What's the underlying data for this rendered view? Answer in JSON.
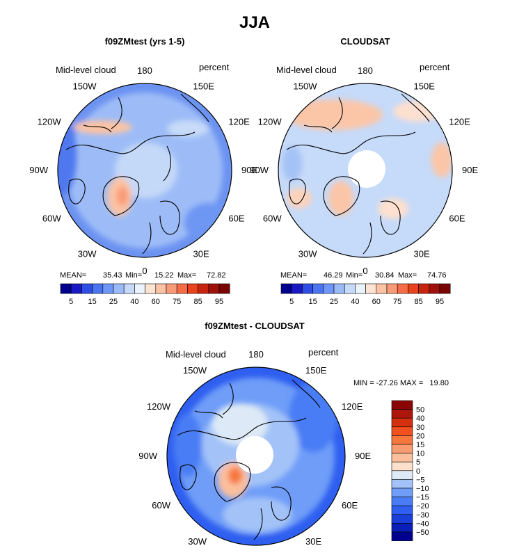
{
  "chart_data": {
    "type": "polar-contour-map-panels",
    "title": "JJA",
    "variable": "Mid-level cloud",
    "projection": "north-polar-stereographic",
    "longitude_labels": [
      "180",
      "150E",
      "120E",
      "90E",
      "60E",
      "30E",
      "0",
      "30W",
      "60W",
      "90W",
      "120W",
      "150W"
    ],
    "panels": [
      {
        "id": "model",
        "title": "f09ZMtest (yrs 1-5)",
        "field_label": "Mid-level cloud",
        "units": "percent",
        "stats": {
          "mean_label": "MEAN=",
          "mean": "35.43",
          "min_label": "Min=",
          "min": "15.22",
          "max_label": "Max=",
          "max": "72.82"
        },
        "polar_gap": false,
        "colorbar_ticks": [
          "5",
          "15",
          "25",
          "40",
          "60",
          "75",
          "85",
          "95"
        ]
      },
      {
        "id": "obs",
        "title": "CLOUDSAT",
        "field_label": "Mid-level cloud",
        "units": "percent",
        "stats": {
          "mean_label": "MEAN=",
          "mean": "46.29",
          "min_label": "Min=",
          "min": "30.84",
          "max_label": "Max=",
          "max": "74.76"
        },
        "polar_gap": true,
        "colorbar_ticks": [
          "5",
          "15",
          "25",
          "40",
          "60",
          "75",
          "85",
          "95"
        ]
      },
      {
        "id": "diff",
        "title": "f09ZMtest - CLOUDSAT",
        "field_label": "Mid-level cloud",
        "units": "percent",
        "stats_text": "MIN = -27.26 MAX =   19.80",
        "polar_gap": true,
        "colorbar_ticks": [
          "50",
          "40",
          "30",
          "20",
          "15",
          "10",
          "5",
          "0",
          "−5",
          "−10",
          "−15",
          "−20",
          "−30",
          "−40",
          "−50"
        ]
      }
    ],
    "colors": {
      "abs_scale": [
        "#00008f",
        "#1a1ac4",
        "#2f4fe4",
        "#4a74f0",
        "#6f97f7",
        "#9bbaf8",
        "#c6d9f9",
        "#eaf2fb",
        "#fde3d2",
        "#fbc2a4",
        "#f99b77",
        "#f56c46",
        "#e8431c",
        "#c8250f",
        "#a0100a",
        "#7a0505"
      ],
      "diff_scale": [
        "#00008f",
        "#0a1eb8",
        "#1a3fd8",
        "#2f5ef0",
        "#4a7df5",
        "#6f9df8",
        "#a3c3f8",
        "#dde9f6",
        "#fde0cc",
        "#fbbf9c",
        "#f99c72",
        "#f6773d",
        "#f0511f",
        "#d2300f",
        "#ad160a",
        "#8a0606"
      ],
      "coast": "#000000"
    }
  }
}
